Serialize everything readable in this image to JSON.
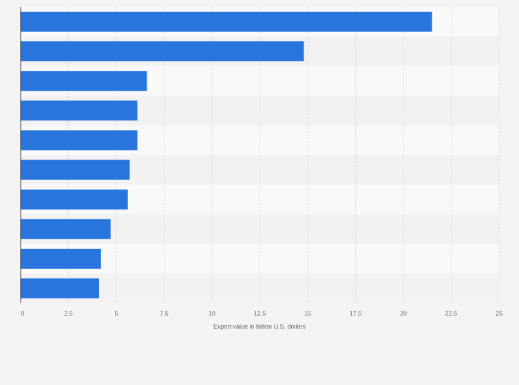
{
  "chart_data": {
    "type": "bar",
    "orientation": "horizontal",
    "categories": [
      "",
      "",
      "",
      "",
      "",
      "",
      "",
      "",
      "",
      ""
    ],
    "values": [
      21.5,
      14.8,
      6.6,
      6.1,
      6.1,
      5.7,
      5.6,
      4.7,
      4.2,
      4.1
    ],
    "title": "",
    "xlabel": "Export value in billion U.S. dollars",
    "ylabel": "",
    "xlim": [
      0,
      25
    ],
    "x_ticks": [
      0,
      2.5,
      5,
      7.5,
      10,
      12.5,
      15,
      17.5,
      20,
      22.5,
      25
    ],
    "x_tick_labels": [
      "0",
      "2.5",
      "5",
      "7.5",
      "10",
      "12.5",
      "15",
      "17.5",
      "20",
      "22.5",
      "25"
    ],
    "grid": true,
    "legend": "none",
    "colors": {
      "bar": "#2876dd",
      "page_background": "#f4f4f4",
      "band_light": "#f9f9f9",
      "band_dark": "#f2f2f2",
      "grid": "#dddddd",
      "axis": "#333333",
      "text": "#666666"
    }
  }
}
